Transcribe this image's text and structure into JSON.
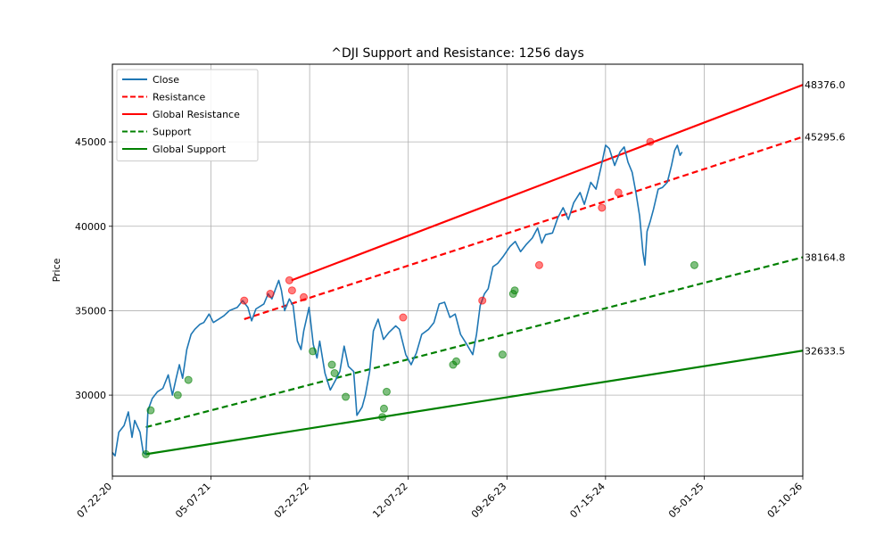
{
  "chart_data": {
    "type": "line",
    "title": "^DJI Support and Resistance: 1256 days",
    "xlabel": "",
    "ylabel": "Price",
    "x_ticks": [
      "07-22-20",
      "05-07-21",
      "02-22-22",
      "12-07-22",
      "09-26-23",
      "07-15-24",
      "05-01-25",
      "02-10-26"
    ],
    "y_ticks": [
      30000,
      35000,
      40000,
      45000
    ],
    "xlim": [
      0,
      1299
    ],
    "ylim": [
      25200,
      49600
    ],
    "grid": true,
    "legend_position": "top-left",
    "legend": [
      {
        "label": "Close",
        "color": "#1f77b4",
        "style": "solid"
      },
      {
        "label": "Resistance",
        "color": "#ff0000",
        "style": "dashed"
      },
      {
        "label": "Global Resistance",
        "color": "#ff0000",
        "style": "solid"
      },
      {
        "label": "Support",
        "color": "#008000",
        "style": "dashed"
      },
      {
        "label": "Global Support",
        "color": "#008000",
        "style": "solid"
      }
    ],
    "close_series": {
      "name": "Close",
      "color": "#1f77b4",
      "points": [
        [
          0,
          26600
        ],
        [
          5,
          26400
        ],
        [
          12,
          27800
        ],
        [
          22,
          28200
        ],
        [
          30,
          29000
        ],
        [
          37,
          27500
        ],
        [
          42,
          28500
        ],
        [
          52,
          27800
        ],
        [
          58,
          26600
        ],
        [
          63,
          26500
        ],
        [
          67,
          29100
        ],
        [
          75,
          29800
        ],
        [
          85,
          30200
        ],
        [
          95,
          30400
        ],
        [
          105,
          31200
        ],
        [
          113,
          30000
        ],
        [
          120,
          31000
        ],
        [
          126,
          31800
        ],
        [
          132,
          31000
        ],
        [
          140,
          32700
        ],
        [
          148,
          33600
        ],
        [
          155,
          33900
        ],
        [
          165,
          34200
        ],
        [
          172,
          34300
        ],
        [
          182,
          34800
        ],
        [
          190,
          34300
        ],
        [
          200,
          34500
        ],
        [
          210,
          34700
        ],
        [
          220,
          35000
        ],
        [
          235,
          35200
        ],
        [
          245,
          35600
        ],
        [
          255,
          35200
        ],
        [
          262,
          34400
        ],
        [
          270,
          35100
        ],
        [
          285,
          35400
        ],
        [
          293,
          36000
        ],
        [
          300,
          35700
        ],
        [
          306,
          36200
        ],
        [
          313,
          36800
        ],
        [
          318,
          36200
        ],
        [
          324,
          35000
        ],
        [
          333,
          35700
        ],
        [
          340,
          35300
        ],
        [
          348,
          33200
        ],
        [
          355,
          32700
        ],
        [
          360,
          33800
        ],
        [
          370,
          35200
        ],
        [
          378,
          33000
        ],
        [
          385,
          32200
        ],
        [
          390,
          33200
        ],
        [
          400,
          31300
        ],
        [
          410,
          30300
        ],
        [
          420,
          30900
        ],
        [
          428,
          31400
        ],
        [
          436,
          32900
        ],
        [
          444,
          31700
        ],
        [
          454,
          31400
        ],
        [
          460,
          28800
        ],
        [
          470,
          29300
        ],
        [
          476,
          30000
        ],
        [
          484,
          31400
        ],
        [
          491,
          33800
        ],
        [
          500,
          34500
        ],
        [
          510,
          33300
        ],
        [
          520,
          33700
        ],
        [
          533,
          34100
        ],
        [
          540,
          33900
        ],
        [
          552,
          32400
        ],
        [
          562,
          31800
        ],
        [
          572,
          32500
        ],
        [
          582,
          33600
        ],
        [
          595,
          33900
        ],
        [
          605,
          34300
        ],
        [
          615,
          35400
        ],
        [
          625,
          35500
        ],
        [
          635,
          34600
        ],
        [
          645,
          34800
        ],
        [
          655,
          33600
        ],
        [
          665,
          33100
        ],
        [
          678,
          32400
        ],
        [
          685,
          33600
        ],
        [
          692,
          35300
        ],
        [
          700,
          36000
        ],
        [
          707,
          36300
        ],
        [
          716,
          37600
        ],
        [
          725,
          37800
        ],
        [
          735,
          38200
        ],
        [
          748,
          38800
        ],
        [
          758,
          39100
        ],
        [
          768,
          38500
        ],
        [
          778,
          38900
        ],
        [
          790,
          39300
        ],
        [
          800,
          39900
        ],
        [
          808,
          39000
        ],
        [
          815,
          39500
        ],
        [
          828,
          39600
        ],
        [
          838,
          40500
        ],
        [
          848,
          41100
        ],
        [
          858,
          40400
        ],
        [
          868,
          41400
        ],
        [
          880,
          42000
        ],
        [
          888,
          41300
        ],
        [
          900,
          42600
        ],
        [
          910,
          42200
        ],
        [
          920,
          43600
        ],
        [
          928,
          44800
        ],
        [
          935,
          44600
        ],
        [
          945,
          43600
        ],
        [
          955,
          44400
        ],
        [
          963,
          44700
        ],
        [
          970,
          43800
        ],
        [
          978,
          43200
        ],
        [
          985,
          42000
        ],
        [
          992,
          40600
        ],
        [
          998,
          38500
        ],
        [
          1002,
          37700
        ],
        [
          1006,
          39700
        ],
        [
          1012,
          40300
        ],
        [
          1018,
          41000
        ],
        [
          1027,
          42200
        ],
        [
          1035,
          42300
        ],
        [
          1044,
          42600
        ],
        [
          1052,
          43600
        ],
        [
          1058,
          44500
        ],
        [
          1063,
          44800
        ],
        [
          1068,
          44200
        ],
        [
          1072,
          44400
        ]
      ]
    },
    "resistance_points": [
      [
        248,
        35600
      ],
      [
        297,
        36000
      ],
      [
        333,
        36800
      ],
      [
        338,
        36200
      ],
      [
        360,
        35800
      ],
      [
        547,
        34600
      ],
      [
        696,
        35600
      ],
      [
        803,
        37700
      ],
      [
        921,
        41100
      ],
      [
        952,
        42000
      ],
      [
        1012,
        45000
      ]
    ],
    "support_points": [
      [
        63,
        26500
      ],
      [
        72,
        29100
      ],
      [
        123,
        30000
      ],
      [
        143,
        30900
      ],
      [
        377,
        32600
      ],
      [
        413,
        31800
      ],
      [
        418,
        31300
      ],
      [
        439,
        29900
      ],
      [
        508,
        28700
      ],
      [
        511,
        29200
      ],
      [
        516,
        30200
      ],
      [
        641,
        31800
      ],
      [
        647,
        32000
      ],
      [
        734,
        32400
      ],
      [
        754,
        36000
      ],
      [
        757,
        36200
      ],
      [
        1095,
        37700
      ]
    ],
    "lines": [
      {
        "name": "Resistance",
        "color": "#ff0000",
        "style": "dashed",
        "x": [
          248,
          1299
        ],
        "y": [
          34500,
          45295.6
        ],
        "end_label": "45295.6"
      },
      {
        "name": "Global Resistance",
        "color": "#ff0000",
        "style": "solid",
        "x": [
          337,
          1299
        ],
        "y": [
          36800,
          48376.0
        ],
        "end_label": "48376.0"
      },
      {
        "name": "Support",
        "color": "#008000",
        "style": "dashed",
        "x": [
          63,
          1299
        ],
        "y": [
          28100,
          38164.8
        ],
        "end_label": "38164.8"
      },
      {
        "name": "Global Support",
        "color": "#008000",
        "style": "solid",
        "x": [
          63,
          1299
        ],
        "y": [
          26500,
          32633.5
        ],
        "end_label": "32633.5"
      }
    ]
  }
}
